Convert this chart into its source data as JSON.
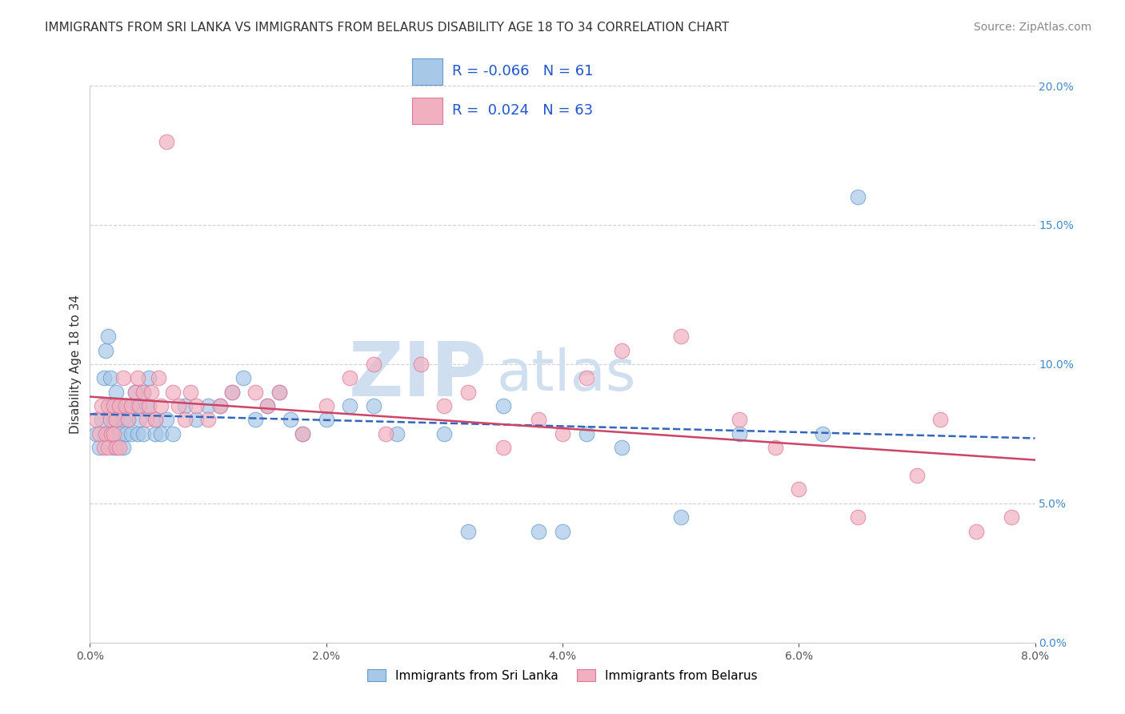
{
  "title": "IMMIGRANTS FROM SRI LANKA VS IMMIGRANTS FROM BELARUS DISABILITY AGE 18 TO 34 CORRELATION CHART",
  "source": "Source: ZipAtlas.com",
  "ylabel": "Disability Age 18 to 34",
  "xlim": [
    0.0,
    8.0
  ],
  "ylim": [
    0.0,
    20.0
  ],
  "xticklabels": [
    "0.0%",
    "2.0%",
    "4.0%",
    "6.0%",
    "8.0%"
  ],
  "yticklabels": [
    "0.0%",
    "5.0%",
    "10.0%",
    "15.0%",
    "20.0%"
  ],
  "xtick_vals": [
    0.0,
    2.0,
    4.0,
    6.0,
    8.0
  ],
  "ytick_vals": [
    0.0,
    5.0,
    10.0,
    15.0,
    20.0
  ],
  "series": [
    {
      "label": "Immigrants from Sri Lanka",
      "color": "#a8c8e8",
      "edge_color": "#6699cc",
      "R": -0.066,
      "N": 61,
      "trend_color": "#3366bb",
      "trend_style": "dashed",
      "x": [
        0.05,
        0.08,
        0.1,
        0.12,
        0.13,
        0.15,
        0.15,
        0.17,
        0.18,
        0.2,
        0.2,
        0.22,
        0.22,
        0.25,
        0.25,
        0.28,
        0.28,
        0.3,
        0.3,
        0.32,
        0.35,
        0.35,
        0.38,
        0.4,
        0.4,
        0.42,
        0.45,
        0.45,
        0.48,
        0.5,
        0.55,
        0.55,
        0.6,
        0.65,
        0.7,
        0.8,
        0.9,
        1.0,
        1.1,
        1.2,
        1.3,
        1.4,
        1.5,
        1.6,
        1.7,
        1.8,
        2.0,
        2.2,
        2.4,
        2.6,
        3.0,
        3.2,
        3.5,
        3.8,
        4.0,
        4.2,
        4.5,
        5.0,
        5.5,
        6.2,
        6.5
      ],
      "y": [
        7.5,
        7.0,
        8.0,
        9.5,
        10.5,
        11.0,
        7.5,
        9.5,
        8.5,
        8.0,
        7.0,
        9.0,
        8.0,
        8.5,
        7.5,
        8.0,
        7.0,
        8.5,
        7.5,
        8.0,
        8.5,
        7.5,
        9.0,
        8.5,
        7.5,
        8.0,
        9.0,
        7.5,
        8.5,
        9.5,
        8.0,
        7.5,
        7.5,
        8.0,
        7.5,
        8.5,
        8.0,
        8.5,
        8.5,
        9.0,
        9.5,
        8.0,
        8.5,
        9.0,
        8.0,
        7.5,
        8.0,
        8.5,
        8.5,
        7.5,
        7.5,
        4.0,
        8.5,
        4.0,
        4.0,
        7.5,
        7.0,
        4.5,
        7.5,
        7.5,
        16.0
      ]
    },
    {
      "label": "Immigrants from Belarus",
      "color": "#f0b0c0",
      "edge_color": "#dd7799",
      "R": 0.024,
      "N": 63,
      "trend_color": "#cc4466",
      "trend_style": "solid",
      "x": [
        0.05,
        0.08,
        0.1,
        0.12,
        0.13,
        0.15,
        0.15,
        0.17,
        0.18,
        0.2,
        0.2,
        0.22,
        0.22,
        0.25,
        0.25,
        0.28,
        0.3,
        0.32,
        0.35,
        0.38,
        0.4,
        0.42,
        0.45,
        0.48,
        0.5,
        0.52,
        0.55,
        0.58,
        0.6,
        0.65,
        0.7,
        0.75,
        0.8,
        0.85,
        0.9,
        1.0,
        1.1,
        1.2,
        1.4,
        1.5,
        1.6,
        1.8,
        2.0,
        2.2,
        2.4,
        2.5,
        2.8,
        3.0,
        3.2,
        3.5,
        3.8,
        4.0,
        4.2,
        4.5,
        5.0,
        5.5,
        5.8,
        6.0,
        6.5,
        7.0,
        7.2,
        7.5,
        7.8
      ],
      "y": [
        8.0,
        7.5,
        8.5,
        7.0,
        7.5,
        8.5,
        7.0,
        8.0,
        7.5,
        8.5,
        7.5,
        8.0,
        7.0,
        8.5,
        7.0,
        9.5,
        8.5,
        8.0,
        8.5,
        9.0,
        9.5,
        8.5,
        9.0,
        8.0,
        8.5,
        9.0,
        8.0,
        9.5,
        8.5,
        18.0,
        9.0,
        8.5,
        8.0,
        9.0,
        8.5,
        8.0,
        8.5,
        9.0,
        9.0,
        8.5,
        9.0,
        7.5,
        8.5,
        9.5,
        10.0,
        7.5,
        10.0,
        8.5,
        9.0,
        7.0,
        8.0,
        7.5,
        9.5,
        10.5,
        11.0,
        8.0,
        7.0,
        5.5,
        4.5,
        6.0,
        8.0,
        4.0,
        4.5
      ]
    }
  ],
  "legend_color": "#2255cc",
  "watermark_zip": "ZIP",
  "watermark_atlas": "atlas",
  "watermark_color": "#d0dff0",
  "background_color": "#ffffff",
  "grid_color": "#cccccc",
  "title_fontsize": 11,
  "axis_label_fontsize": 11,
  "tick_fontsize": 10,
  "source_fontsize": 10,
  "right_ytick_color": "#4488cc"
}
